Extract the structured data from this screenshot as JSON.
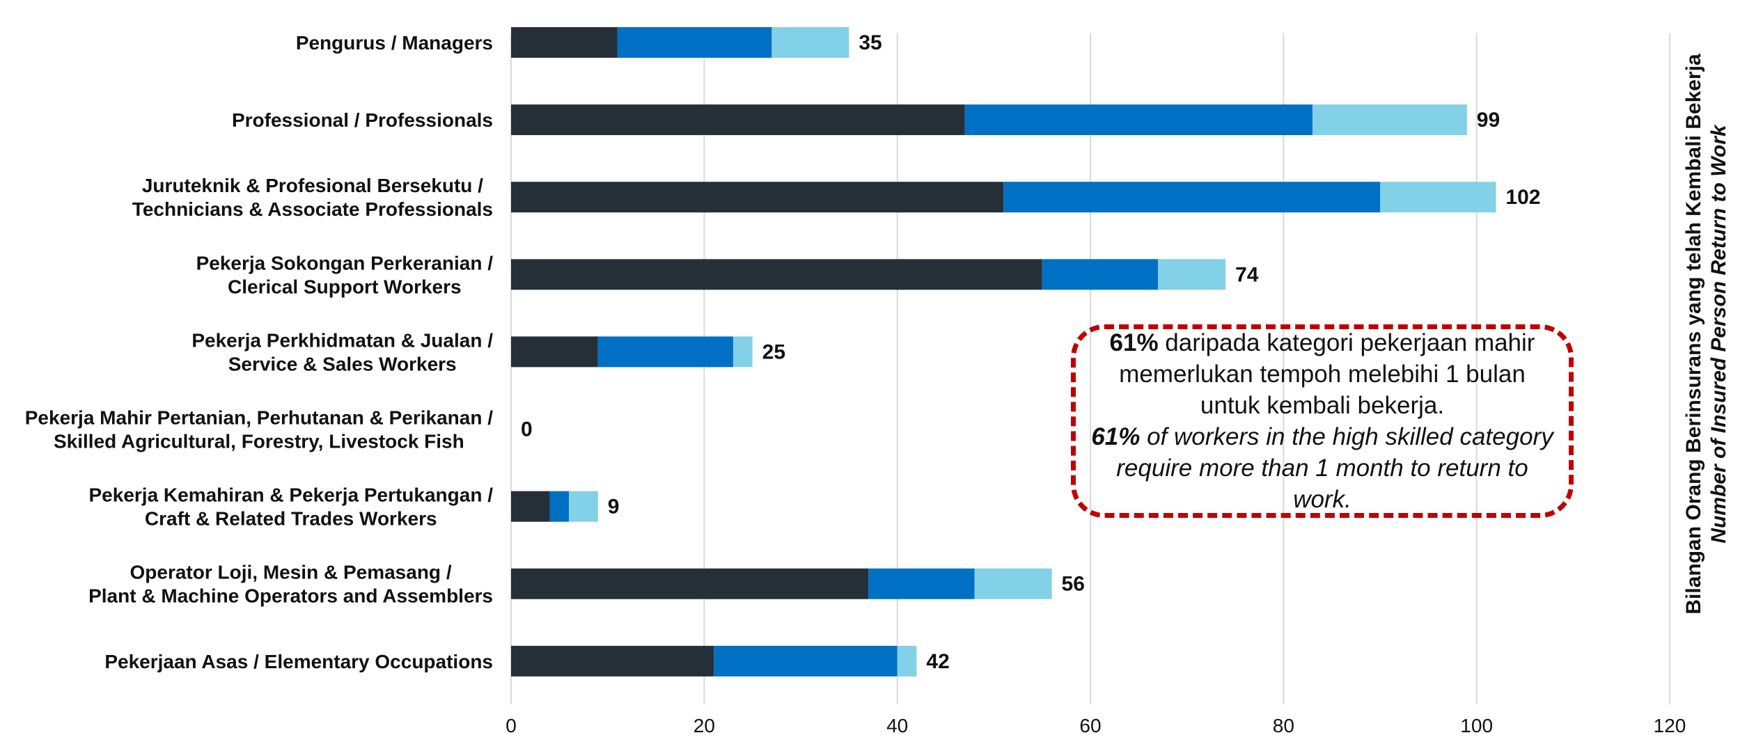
{
  "chart_data": {
    "type": "bar",
    "orientation": "horizontal",
    "stacked": true,
    "categories": [
      [
        "Pengurus / Managers"
      ],
      [
        "Professional / Professionals"
      ],
      [
        "Juruteknik & Profesional Bersekutu /",
        "Technicians & Associate Professionals"
      ],
      [
        "Pekerja Sokongan Perkeranian /",
        "Clerical Support Workers"
      ],
      [
        "Pekerja Perkhidmatan & Jualan /",
        "Service & Sales Workers"
      ],
      [
        "Pekerja Mahir Pertanian, Perhutanan & Perikanan /",
        "Skilled Agricultural, Forestry, Livestock  Fish"
      ],
      [
        "Pekerja Kemahiran & Pekerja Pertukangan /",
        "Craft & Related Trades Workers"
      ],
      [
        "Operator Loji, Mesin & Pemasang /",
        "Plant & Machine Operators and Assemblers"
      ],
      [
        "Pekerjaan Asas / Elementary Occupations"
      ]
    ],
    "series": [
      {
        "color": "#252f38",
        "values": [
          11,
          47,
          51,
          55,
          9,
          0,
          4,
          37,
          21
        ]
      },
      {
        "color": "#0070c4",
        "values": [
          16,
          36,
          39,
          12,
          14,
          0,
          2,
          11,
          19
        ]
      },
      {
        "color": "#82d1e6",
        "values": [
          8,
          16,
          12,
          7,
          2,
          0,
          3,
          8,
          2
        ]
      }
    ],
    "totals": [
      35,
      99,
      102,
      74,
      25,
      0,
      9,
      56,
      42
    ],
    "xlim": [
      0,
      120
    ],
    "xticks": [
      0,
      20,
      40,
      60,
      80,
      100,
      120
    ],
    "grid": "vertical",
    "ylabel": "Bilangan Orang Berinsurans yang telah Kembali Bekerja",
    "ylabel_en": "Number of Insured Person Return to Work"
  },
  "callout": {
    "ms_pct": "61%",
    "ms_text": " daripada kategori pekerjaan mahir memerlukan tempoh melebihi 1 bulan untuk kembali bekerja.",
    "en_pct": "61%",
    "en_text": " of workers in the high skilled category require more than 1 month to return to work."
  }
}
